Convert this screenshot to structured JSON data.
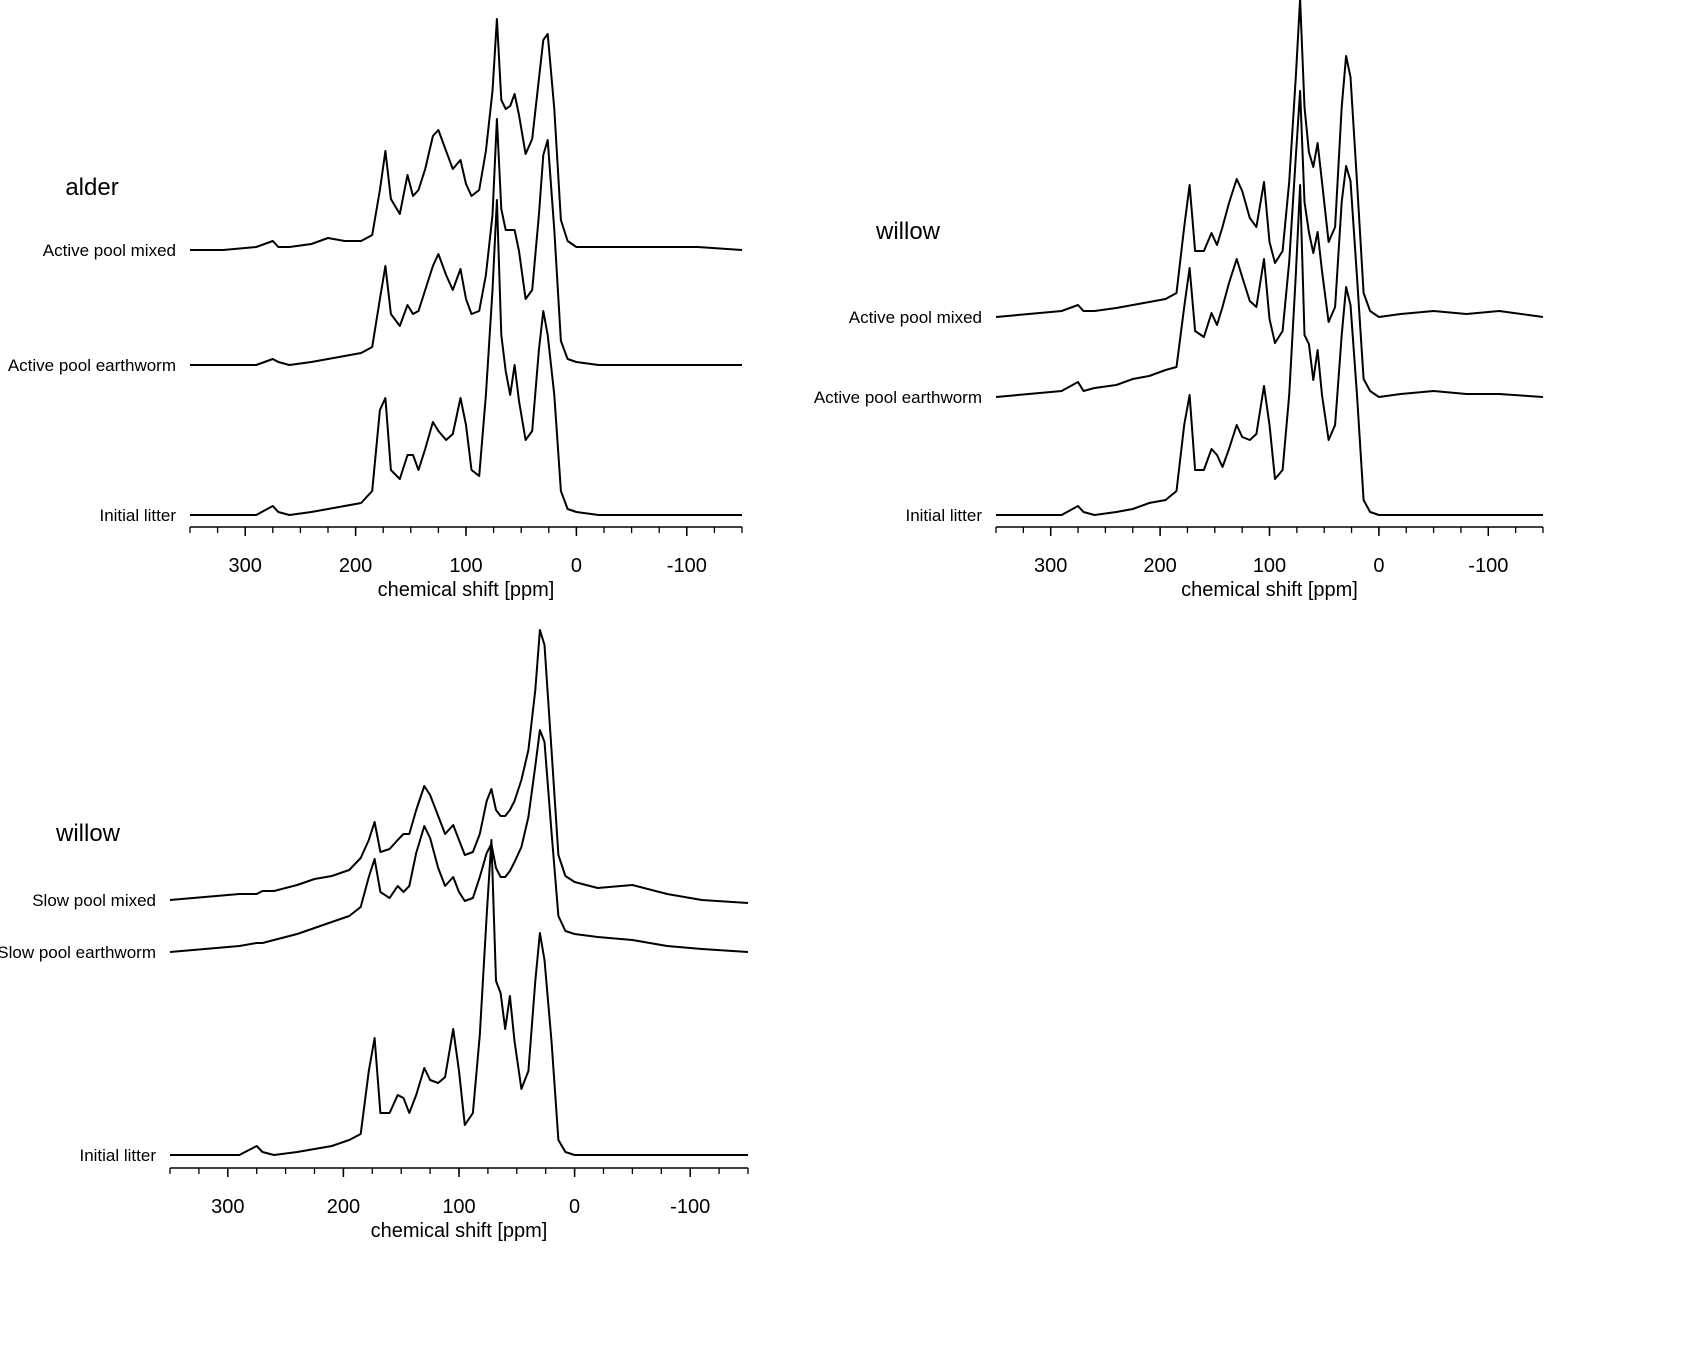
{
  "chart_data": [
    {
      "type": "line",
      "title": "alder",
      "xlabel": "chemical shift [ppm]",
      "xlim": [
        350,
        -150
      ],
      "xticks": [
        300,
        200,
        100,
        0,
        -100
      ],
      "xminorticks": [
        350,
        325,
        300,
        275,
        250,
        225,
        200,
        175,
        150,
        125,
        100,
        75,
        50,
        25,
        0,
        -25,
        -50,
        -75,
        -100,
        -125,
        -150
      ],
      "ylim": [
        0,
        100
      ],
      "x": [
        350,
        320,
        290,
        275,
        270,
        260,
        240,
        225,
        210,
        195,
        185,
        178,
        173,
        168,
        160,
        153,
        148,
        143,
        137,
        130,
        125,
        118,
        112,
        105,
        100,
        95,
        88,
        82,
        76,
        72,
        68,
        64,
        60,
        56,
        52,
        46,
        40,
        34,
        30,
        26,
        20,
        14,
        8,
        0,
        -20,
        -50,
        -80,
        -110,
        -150
      ],
      "series": [
        {
          "name": "Active pool mixed",
          "color": "#000000",
          "values": [
            0,
            0,
            1,
            3,
            1,
            1,
            2,
            4,
            3,
            3,
            5,
            20,
            33,
            17,
            12,
            25,
            18,
            20,
            27,
            38,
            40,
            33,
            27,
            30,
            22,
            18,
            20,
            33,
            53,
            77,
            50,
            47,
            48,
            52,
            45,
            32,
            37,
            57,
            70,
            72,
            47,
            10,
            3,
            1,
            1,
            1,
            1,
            1,
            0
          ]
        },
        {
          "name": "Active pool earthworm",
          "color": "#000000",
          "values": [
            0,
            0,
            0,
            2,
            1,
            0,
            1,
            2,
            3,
            4,
            6,
            22,
            33,
            17,
            13,
            20,
            17,
            18,
            25,
            33,
            37,
            30,
            25,
            32,
            22,
            17,
            18,
            30,
            50,
            82,
            52,
            45,
            45,
            45,
            38,
            22,
            25,
            50,
            70,
            75,
            45,
            8,
            2,
            1,
            0,
            0,
            0,
            0,
            0
          ]
        },
        {
          "name": "Initial litter",
          "color": "#000000",
          "values": [
            0,
            0,
            0,
            3,
            1,
            0,
            1,
            2,
            3,
            4,
            8,
            35,
            39,
            15,
            12,
            20,
            20,
            15,
            22,
            31,
            28,
            25,
            27,
            39,
            30,
            15,
            13,
            40,
            75,
            105,
            60,
            48,
            40,
            50,
            38,
            25,
            28,
            55,
            68,
            60,
            40,
            8,
            2,
            1,
            0,
            0,
            0,
            0,
            0
          ]
        }
      ]
    },
    {
      "type": "line",
      "title": "willow",
      "xlabel": "chemical shift [ppm]",
      "xlim": [
        350,
        -150
      ],
      "xticks": [
        300,
        200,
        100,
        0,
        -100
      ],
      "xminorticks": [
        350,
        325,
        300,
        275,
        250,
        225,
        200,
        175,
        150,
        125,
        100,
        75,
        50,
        25,
        0,
        -25,
        -50,
        -75,
        -100,
        -125,
        -150
      ],
      "ylim": [
        0,
        100
      ],
      "x": [
        350,
        320,
        290,
        275,
        270,
        260,
        240,
        225,
        210,
        195,
        185,
        178,
        173,
        168,
        160,
        153,
        148,
        143,
        137,
        130,
        125,
        118,
        112,
        105,
        100,
        95,
        88,
        82,
        76,
        72,
        68,
        64,
        60,
        56,
        52,
        46,
        40,
        34,
        30,
        26,
        20,
        14,
        8,
        0,
        -20,
        -50,
        -80,
        -110,
        -150
      ],
      "series": [
        {
          "name": "Active pool mixed",
          "color": "#000000",
          "values": [
            0,
            1,
            2,
            4,
            2,
            2,
            3,
            4,
            5,
            6,
            8,
            30,
            44,
            22,
            22,
            28,
            24,
            30,
            38,
            46,
            42,
            33,
            30,
            45,
            25,
            18,
            22,
            45,
            80,
            106,
            70,
            55,
            50,
            58,
            45,
            25,
            30,
            70,
            87,
            80,
            45,
            8,
            2,
            0,
            1,
            2,
            1,
            2,
            0
          ]
        },
        {
          "name": "Active pool earthworm",
          "color": "#000000",
          "values": [
            0,
            1,
            2,
            5,
            2,
            3,
            4,
            6,
            7,
            9,
            10,
            30,
            43,
            22,
            20,
            28,
            24,
            30,
            38,
            46,
            40,
            32,
            30,
            46,
            26,
            18,
            22,
            45,
            80,
            102,
            65,
            55,
            48,
            55,
            42,
            25,
            30,
            65,
            77,
            72,
            40,
            6,
            2,
            0,
            1,
            2,
            1,
            1,
            0
          ]
        },
        {
          "name": "Initial litter",
          "color": "#000000",
          "values": [
            0,
            0,
            0,
            3,
            1,
            0,
            1,
            2,
            4,
            5,
            8,
            30,
            40,
            15,
            15,
            22,
            20,
            16,
            22,
            30,
            26,
            25,
            27,
            43,
            30,
            12,
            15,
            40,
            80,
            110,
            60,
            57,
            45,
            55,
            40,
            25,
            30,
            60,
            76,
            70,
            40,
            5,
            1,
            0,
            0,
            0,
            0,
            0,
            0
          ]
        }
      ]
    },
    {
      "type": "line",
      "title": "willow",
      "xlabel": "chemical shift [ppm]",
      "xlim": [
        350,
        -150
      ],
      "xticks": [
        300,
        200,
        100,
        0,
        -100
      ],
      "xminorticks": [
        350,
        325,
        300,
        275,
        250,
        225,
        200,
        175,
        150,
        125,
        100,
        75,
        50,
        25,
        0,
        -25,
        -50,
        -75,
        -100,
        -125,
        -150
      ],
      "ylim": [
        0,
        100
      ],
      "x": [
        350,
        320,
        290,
        275,
        270,
        260,
        240,
        225,
        210,
        195,
        185,
        178,
        173,
        168,
        160,
        153,
        148,
        143,
        137,
        130,
        125,
        118,
        112,
        105,
        100,
        95,
        88,
        82,
        76,
        72,
        68,
        64,
        60,
        56,
        52,
        46,
        40,
        34,
        30,
        26,
        20,
        14,
        8,
        0,
        -20,
        -50,
        -80,
        -110,
        -150
      ],
      "series": [
        {
          "name": "Slow pool mixed",
          "color": "#000000",
          "values": [
            0,
            1,
            2,
            2,
            3,
            3,
            5,
            7,
            8,
            10,
            14,
            20,
            26,
            16,
            17,
            20,
            22,
            22,
            30,
            38,
            35,
            28,
            22,
            25,
            20,
            15,
            16,
            22,
            33,
            37,
            30,
            28,
            28,
            30,
            33,
            40,
            50,
            70,
            90,
            85,
            50,
            15,
            8,
            6,
            4,
            5,
            2,
            0,
            -1
          ]
        },
        {
          "name": "Slow pool earthworm",
          "color": "#000000",
          "values": [
            0,
            1,
            2,
            3,
            3,
            4,
            6,
            8,
            10,
            12,
            15,
            25,
            31,
            20,
            18,
            22,
            20,
            22,
            33,
            42,
            38,
            28,
            22,
            25,
            20,
            17,
            18,
            25,
            33,
            36,
            28,
            25,
            25,
            27,
            30,
            35,
            45,
            62,
            74,
            70,
            40,
            12,
            7,
            6,
            5,
            4,
            2,
            1,
            0
          ]
        },
        {
          "name": "Initial litter",
          "color": "#000000",
          "values": [
            0,
            0,
            0,
            3,
            1,
            0,
            1,
            2,
            3,
            5,
            7,
            28,
            39,
            14,
            14,
            20,
            19,
            14,
            20,
            29,
            25,
            24,
            26,
            42,
            28,
            10,
            14,
            40,
            80,
            105,
            58,
            54,
            42,
            53,
            38,
            22,
            28,
            58,
            74,
            65,
            38,
            5,
            1,
            0,
            0,
            0,
            0,
            0,
            0
          ]
        }
      ]
    }
  ]
}
